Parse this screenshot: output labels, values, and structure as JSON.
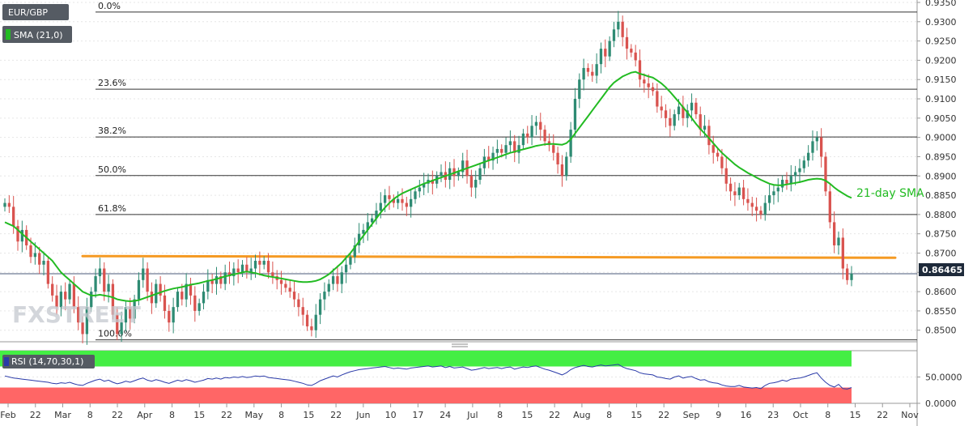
{
  "instrument": "EUR/GBP",
  "indicator_label": "SMA (21,0)",
  "rsi_label": "RSI (14,70,30,1)",
  "current_price": "0.86465",
  "sma_annotation": "21-day SMA",
  "watermark": "FXSTREET",
  "colors": {
    "up": "#2e8b73",
    "down": "#d9534f",
    "sma": "#22bb22",
    "support": "#f59a23",
    "rsi": "#2a3aa8",
    "overbought": "#44ee44",
    "oversold": "#ff6666"
  },
  "chart_data": [
    {
      "type": "candlestick",
      "title": "EUR/GBP",
      "ylim": [
        0.847,
        0.935
      ],
      "y_ticks": [
        "0.8500",
        "0.8550",
        "0.8600",
        "0.8650",
        "0.8700",
        "0.8750",
        "0.8800",
        "0.8850",
        "0.8900",
        "0.8950",
        "0.9000",
        "0.9050",
        "0.9100",
        "0.9150",
        "0.9200",
        "0.9250",
        "0.9300",
        "0.9350"
      ],
      "x_ticks": [
        "Feb",
        "22",
        "Mar",
        "8",
        "22",
        "Apr",
        "8",
        "15",
        "22",
        "May",
        "8",
        "15",
        "22",
        "Jun",
        "10",
        "17",
        "24",
        "Jul",
        "8",
        "15",
        "22",
        "Aug",
        "8",
        "15",
        "22",
        "Sep",
        "9",
        "16",
        "23",
        "Oct",
        "8",
        "15",
        "22",
        "Nov"
      ],
      "fibonacci": [
        {
          "label": "0.0%",
          "value": 0.9325
        },
        {
          "label": "23.6%",
          "value": 0.9125
        },
        {
          "label": "38.2%",
          "value": 0.9001
        },
        {
          "label": "50.0%",
          "value": 0.8901
        },
        {
          "label": "61.8%",
          "value": 0.88
        },
        {
          "label": "100.0%",
          "value": 0.8475
        }
      ],
      "support_line": 0.869,
      "current_line": 0.86465,
      "closes": [
        0.883,
        0.882,
        0.877,
        0.873,
        0.876,
        0.872,
        0.869,
        0.87,
        0.867,
        0.868,
        0.862,
        0.859,
        0.856,
        0.86,
        0.858,
        0.862,
        0.856,
        0.852,
        0.849,
        0.856,
        0.86,
        0.864,
        0.866,
        0.86,
        0.862,
        0.854,
        0.849,
        0.852,
        0.856,
        0.853,
        0.858,
        0.863,
        0.866,
        0.86,
        0.857,
        0.862,
        0.859,
        0.855,
        0.852,
        0.856,
        0.86,
        0.858,
        0.862,
        0.859,
        0.855,
        0.857,
        0.86,
        0.863,
        0.862,
        0.864,
        0.862,
        0.865,
        0.864,
        0.866,
        0.865,
        0.867,
        0.865,
        0.866,
        0.868,
        0.867,
        0.868,
        0.865,
        0.864,
        0.863,
        0.862,
        0.861,
        0.86,
        0.858,
        0.856,
        0.854,
        0.851,
        0.85,
        0.854,
        0.858,
        0.86,
        0.862,
        0.864,
        0.862,
        0.865,
        0.867,
        0.869,
        0.872,
        0.875,
        0.876,
        0.878,
        0.879,
        0.881,
        0.883,
        0.885,
        0.884,
        0.883,
        0.884,
        0.883,
        0.882,
        0.884,
        0.886,
        0.887,
        0.888,
        0.889,
        0.888,
        0.89,
        0.891,
        0.889,
        0.892,
        0.89,
        0.891,
        0.894,
        0.89,
        0.887,
        0.889,
        0.892,
        0.895,
        0.894,
        0.896,
        0.897,
        0.896,
        0.898,
        0.899,
        0.896,
        0.898,
        0.901,
        0.9,
        0.903,
        0.904,
        0.902,
        0.899,
        0.898,
        0.896,
        0.893,
        0.89,
        0.895,
        0.902,
        0.91,
        0.915,
        0.918,
        0.917,
        0.916,
        0.919,
        0.923,
        0.921,
        0.925,
        0.928,
        0.93,
        0.926,
        0.923,
        0.922,
        0.92,
        0.915,
        0.914,
        0.913,
        0.912,
        0.908,
        0.907,
        0.905,
        0.903,
        0.906,
        0.908,
        0.905,
        0.907,
        0.909,
        0.906,
        0.902,
        0.903,
        0.898,
        0.896,
        0.895,
        0.892,
        0.888,
        0.886,
        0.885,
        0.887,
        0.884,
        0.883,
        0.882,
        0.881,
        0.88,
        0.883,
        0.885,
        0.886,
        0.887,
        0.889,
        0.888,
        0.89,
        0.891,
        0.892,
        0.894,
        0.896,
        0.899,
        0.9,
        0.895,
        0.886,
        0.878,
        0.872,
        0.874,
        0.866,
        0.863,
        0.86465
      ],
      "sma_21": [
        0.878,
        0.8775,
        0.877,
        0.876,
        0.875,
        0.874,
        0.873,
        0.872,
        0.871,
        0.87,
        0.869,
        0.868,
        0.8665,
        0.865,
        0.864,
        0.863,
        0.862,
        0.861,
        0.86,
        0.8595,
        0.859,
        0.859,
        0.8592,
        0.859,
        0.8588,
        0.8585,
        0.858,
        0.8578,
        0.8576,
        0.8575,
        0.8576,
        0.8578,
        0.8582,
        0.8586,
        0.859,
        0.8594,
        0.8598,
        0.8602,
        0.8605,
        0.8608,
        0.861,
        0.8612,
        0.8615,
        0.8618,
        0.862,
        0.8622,
        0.8625,
        0.8628,
        0.863,
        0.8633,
        0.8636,
        0.864,
        0.8642,
        0.8645,
        0.8647,
        0.865,
        0.8652,
        0.865,
        0.8648,
        0.8645,
        0.8642,
        0.864,
        0.8638,
        0.8636,
        0.8634,
        0.8632,
        0.863,
        0.8628,
        0.8626,
        0.8625,
        0.8625,
        0.8626,
        0.8628,
        0.8632,
        0.8638,
        0.8645,
        0.8655,
        0.8665,
        0.8675,
        0.8688,
        0.87,
        0.8715,
        0.873,
        0.8745,
        0.876,
        0.8775,
        0.879,
        0.8805,
        0.8818,
        0.883,
        0.884,
        0.8848,
        0.8855,
        0.886,
        0.8865,
        0.887,
        0.8875,
        0.888,
        0.8884,
        0.8888,
        0.8892,
        0.8896,
        0.89,
        0.8904,
        0.8908,
        0.8912,
        0.8916,
        0.892,
        0.8924,
        0.8928,
        0.8932,
        0.8936,
        0.894,
        0.8944,
        0.8948,
        0.8952,
        0.8956,
        0.896,
        0.8963,
        0.8966,
        0.8969,
        0.8972,
        0.8975,
        0.8978,
        0.898,
        0.8982,
        0.8983,
        0.8983,
        0.8982,
        0.8981,
        0.8985,
        0.8995,
        0.901,
        0.9025,
        0.904,
        0.9055,
        0.907,
        0.9085,
        0.91,
        0.9115,
        0.913,
        0.9142,
        0.915,
        0.9158,
        0.9163,
        0.9168,
        0.917,
        0.9165,
        0.9162,
        0.9158,
        0.9155,
        0.9148,
        0.914,
        0.913,
        0.9118,
        0.9105,
        0.9092,
        0.9078,
        0.9065,
        0.905,
        0.9035,
        0.9022,
        0.901,
        0.8998,
        0.8985,
        0.8972,
        0.896,
        0.895,
        0.894,
        0.893,
        0.8922,
        0.8915,
        0.8908,
        0.8902,
        0.8896,
        0.889,
        0.8885,
        0.888,
        0.8877,
        0.8876,
        0.8876,
        0.8878,
        0.888,
        0.8882,
        0.8884,
        0.8887,
        0.889,
        0.8892,
        0.8893,
        0.8892,
        0.8888,
        0.888,
        0.887,
        0.8862,
        0.8855,
        0.8848,
        0.8843
      ],
      "rsi": [
        52,
        50,
        48,
        47,
        46,
        45,
        44,
        43,
        42,
        41,
        40,
        38,
        37,
        39,
        38,
        40,
        37,
        35,
        34,
        38,
        41,
        44,
        46,
        42,
        44,
        40,
        37,
        39,
        42,
        40,
        43,
        46,
        48,
        44,
        42,
        45,
        43,
        40,
        38,
        41,
        44,
        42,
        45,
        43,
        40,
        42,
        44,
        47,
        46,
        48,
        46,
        49,
        48,
        50,
        49,
        51,
        49,
        50,
        52,
        51,
        52,
        49,
        48,
        47,
        46,
        45,
        44,
        42,
        40,
        38,
        35,
        34,
        38,
        43,
        46,
        49,
        52,
        50,
        54,
        57,
        60,
        62,
        64,
        65,
        66,
        67,
        68,
        69,
        70,
        68,
        66,
        67,
        66,
        65,
        67,
        68,
        69,
        70,
        71,
        69,
        70,
        71,
        68,
        70,
        67,
        68,
        69,
        66,
        63,
        64,
        66,
        68,
        66,
        67,
        68,
        66,
        68,
        69,
        65,
        67,
        69,
        68,
        70,
        71,
        68,
        65,
        63,
        60,
        57,
        54,
        58,
        64,
        68,
        70,
        72,
        70,
        69,
        71,
        73,
        71,
        72,
        73,
        74,
        69,
        66,
        64,
        62,
        58,
        56,
        55,
        54,
        50,
        49,
        47,
        46,
        50,
        52,
        48,
        50,
        51,
        47,
        44,
        45,
        41,
        39,
        38,
        35,
        33,
        32,
        32,
        34,
        31,
        30,
        29,
        30,
        28,
        34,
        38,
        39,
        41,
        44,
        42,
        46,
        47,
        48,
        50,
        53,
        56,
        58,
        48,
        40,
        34,
        31,
        36,
        28,
        27,
        30
      ],
      "rsi_levels": {
        "overbought": 70,
        "oversold": 30,
        "mid": 50
      },
      "rsi_ticks": [
        "50.0000",
        "0.0000"
      ]
    }
  ]
}
